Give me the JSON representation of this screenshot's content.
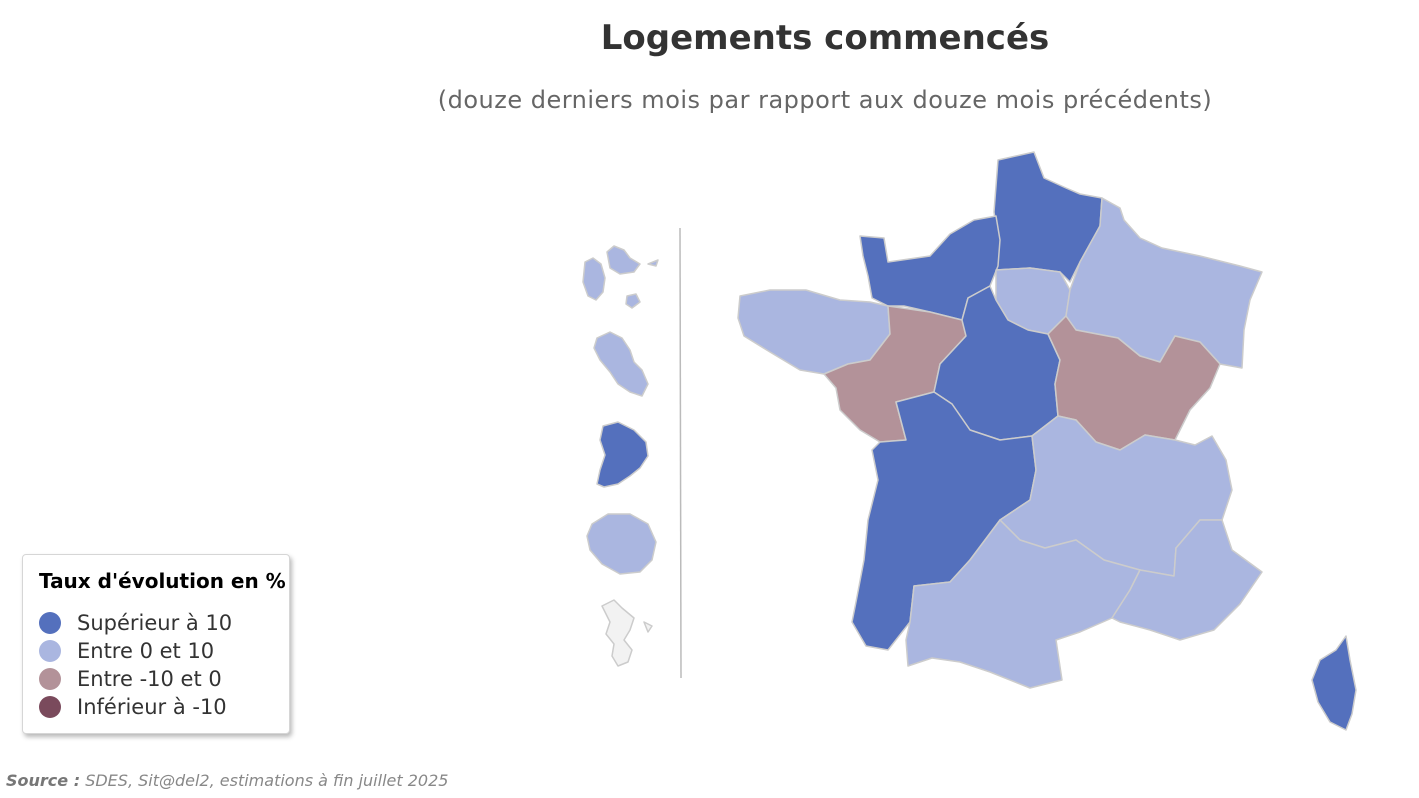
{
  "header": {
    "title": "Logements commencés",
    "subtitle": "(douze derniers mois par rapport aux douze mois précédents)"
  },
  "legend": {
    "title": "Taux d'évolution en %",
    "items": [
      {
        "label": "Supérieur à 10",
        "color": "#5470bd"
      },
      {
        "label": "Entre 0 et 10",
        "color": "#aab6e0"
      },
      {
        "label": "Entre -10 et 0",
        "color": "#b39299"
      },
      {
        "label": "Inférieur à -10",
        "color": "#7a4a5c"
      }
    ]
  },
  "colors": {
    "sup10": "#5470bd",
    "0to10": "#aab6e0",
    "m10to0": "#b39299",
    "inf_m10": "#7a4a5c",
    "no_data": "#f2f2f2"
  },
  "regions": [
    {
      "name": "Hauts-de-France",
      "class": "sup10"
    },
    {
      "name": "Normandie",
      "class": "sup10"
    },
    {
      "name": "Île-de-France",
      "class": "0to10"
    },
    {
      "name": "Grand Est",
      "class": "0to10"
    },
    {
      "name": "Bretagne",
      "class": "0to10"
    },
    {
      "name": "Pays de la Loire",
      "class": "m10to0"
    },
    {
      "name": "Centre-Val de Loire",
      "class": "sup10"
    },
    {
      "name": "Bourgogne-Franche-Comté",
      "class": "m10to0"
    },
    {
      "name": "Nouvelle-Aquitaine",
      "class": "sup10"
    },
    {
      "name": "Auvergne-Rhône-Alpes",
      "class": "0to10"
    },
    {
      "name": "Occitanie",
      "class": "0to10"
    },
    {
      "name": "Provence-Alpes-Côte d'Azur",
      "class": "0to10"
    },
    {
      "name": "Corse",
      "class": "sup10"
    },
    {
      "name": "Guadeloupe",
      "class": "0to10"
    },
    {
      "name": "Martinique",
      "class": "0to10"
    },
    {
      "name": "Guyane",
      "class": "sup10"
    },
    {
      "name": "La Réunion",
      "class": "0to10"
    },
    {
      "name": "Mayotte",
      "class": "no_data"
    }
  ],
  "source": {
    "label": "Source :",
    "text": " SDES, Sit@del2, estimations à fin juillet 2025"
  }
}
